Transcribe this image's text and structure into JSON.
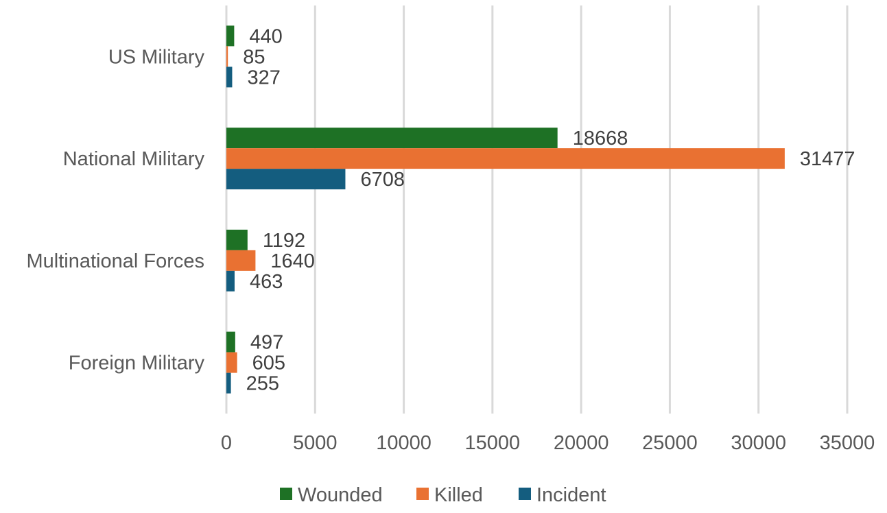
{
  "chart_data": {
    "type": "bar",
    "orientation": "horizontal",
    "title": "",
    "xlabel": "",
    "ylabel": "",
    "categories": [
      "US Military",
      "National Military",
      "Multinational Forces",
      "Foreign Military"
    ],
    "series": [
      {
        "name": "Wounded",
        "color": "#1e7125",
        "values": [
          440,
          18668,
          1192,
          497
        ]
      },
      {
        "name": "Killed",
        "color": "#e97132",
        "values": [
          85,
          31477,
          1640,
          605
        ]
      },
      {
        "name": "Incident",
        "color": "#145d7f",
        "values": [
          327,
          6708,
          463,
          255
        ]
      }
    ],
    "xlim": [
      0,
      35000
    ],
    "x_ticks": [
      "0",
      "5000",
      "10000",
      "15000",
      "20000",
      "25000",
      "30000",
      "35000"
    ],
    "x_tick_values": [
      0,
      5000,
      10000,
      15000,
      20000,
      25000,
      30000,
      35000
    ],
    "grid": true,
    "legend_position": "bottom",
    "data_labels": true
  }
}
